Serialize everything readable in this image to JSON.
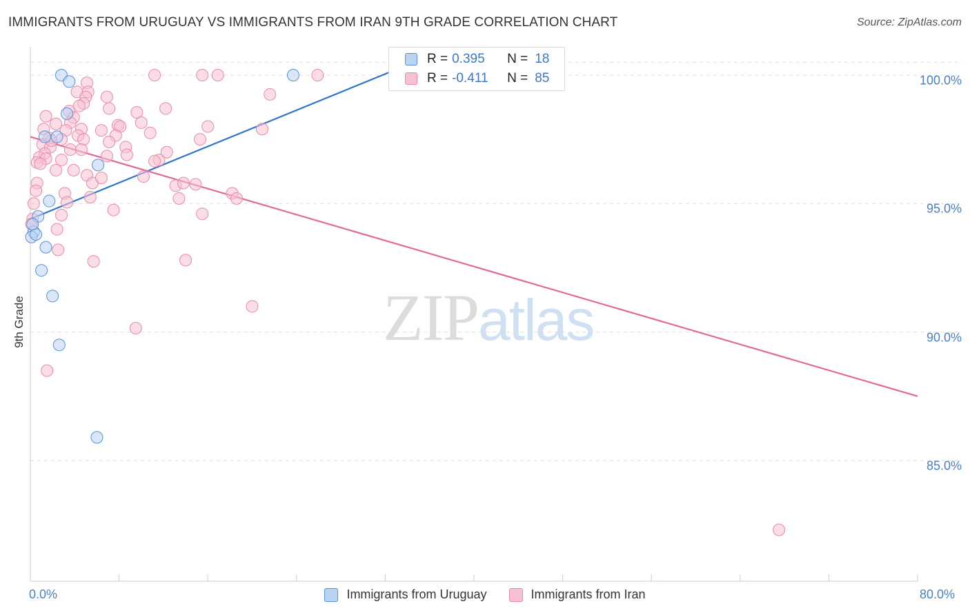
{
  "title": "IMMIGRANTS FROM URUGUAY VS IMMIGRANTS FROM IRAN 9TH GRADE CORRELATION CHART",
  "source": "Source: ZipAtlas.com",
  "watermark": {
    "zip": "ZIP",
    "atlas": "atlas"
  },
  "colors": {
    "uruguay_fill": "#b9d3f3",
    "uruguay_stroke": "#5b8fd6",
    "uruguay_line": "#2f74cc",
    "iran_fill": "#f7c1d1",
    "iran_stroke": "#e98aa8",
    "iran_line": "#e0689a",
    "grid": "#dddddd",
    "tick_text": "#4a7fc1"
  },
  "legend": {
    "uruguay": {
      "r_label": "R =",
      "r_value": "0.395",
      "n_label": "N =",
      "n_value": "18"
    },
    "iran": {
      "r_label": "R =",
      "r_value": "-0.411",
      "n_label": "N =",
      "n_value": "85"
    }
  },
  "chart_data": {
    "type": "scatter",
    "title": "IMMIGRANTS FROM URUGUAY VS IMMIGRANTS FROM IRAN 9TH GRADE CORRELATION CHART",
    "xlabel": "",
    "ylabel": "9th Grade",
    "xlim": [
      0,
      80
    ],
    "ylim": [
      80.3,
      101.1
    ],
    "x_tick_labels": [
      "0.0%",
      "80.0%"
    ],
    "y_ticks": [
      85,
      90,
      95,
      100
    ],
    "y_tick_labels": [
      "85.0%",
      "90.0%",
      "95.0%",
      "100.0%"
    ],
    "grid": "horizontal dashed",
    "legend_position": "bottom",
    "series": [
      {
        "name": "Immigrants from Uruguay",
        "color": "#5b8fd6",
        "trend": {
          "x": [
            0.0,
            34.0
          ],
          "y": [
            94.4,
            100.4
          ]
        },
        "points": [
          [
            2.8,
            100.0
          ],
          [
            23.7,
            100.0
          ],
          [
            3.5,
            99.75
          ],
          [
            3.3,
            98.5
          ],
          [
            1.3,
            97.6
          ],
          [
            2.4,
            97.6
          ],
          [
            6.1,
            96.5
          ],
          [
            1.7,
            95.1
          ],
          [
            0.7,
            94.5
          ],
          [
            0.3,
            93.9
          ],
          [
            0.1,
            93.7
          ],
          [
            1.4,
            93.3
          ],
          [
            1.0,
            92.4
          ],
          [
            2.0,
            91.4
          ],
          [
            2.6,
            89.5
          ],
          [
            6.0,
            85.9
          ],
          [
            0.5,
            93.8
          ],
          [
            0.2,
            94.2
          ]
        ]
      },
      {
        "name": "Immigrants from Iran",
        "color": "#e98aa8",
        "trend": {
          "x": [
            0.0,
            80.0
          ],
          "y": [
            97.6,
            87.5
          ]
        },
        "points": [
          [
            11.2,
            100.0
          ],
          [
            15.5,
            100.0
          ],
          [
            16.9,
            100.0
          ],
          [
            25.9,
            100.0
          ],
          [
            5.1,
            99.7
          ],
          [
            4.2,
            99.35
          ],
          [
            5.2,
            99.35
          ],
          [
            21.6,
            99.25
          ],
          [
            5.0,
            99.15
          ],
          [
            6.9,
            99.15
          ],
          [
            4.8,
            98.9
          ],
          [
            4.4,
            98.8
          ],
          [
            7.1,
            98.7
          ],
          [
            12.2,
            98.7
          ],
          [
            3.5,
            98.6
          ],
          [
            9.6,
            98.55
          ],
          [
            1.4,
            98.4
          ],
          [
            3.9,
            98.35
          ],
          [
            10.0,
            98.15
          ],
          [
            3.6,
            98.15
          ],
          [
            2.3,
            98.1
          ],
          [
            7.9,
            98.05
          ],
          [
            8.1,
            98.0
          ],
          [
            1.2,
            97.9
          ],
          [
            4.6,
            97.9
          ],
          [
            3.2,
            97.85
          ],
          [
            20.9,
            97.9
          ],
          [
            6.4,
            97.85
          ],
          [
            10.8,
            97.75
          ],
          [
            4.3,
            97.65
          ],
          [
            7.7,
            97.65
          ],
          [
            1.7,
            97.55
          ],
          [
            2.8,
            97.5
          ],
          [
            4.8,
            97.5
          ],
          [
            15.3,
            97.5
          ],
          [
            7.1,
            97.4
          ],
          [
            1.1,
            97.3
          ],
          [
            8.6,
            97.2
          ],
          [
            1.8,
            97.2
          ],
          [
            3.6,
            97.1
          ],
          [
            4.6,
            97.1
          ],
          [
            1.3,
            96.95
          ],
          [
            6.9,
            96.85
          ],
          [
            0.8,
            96.8
          ],
          [
            1.4,
            96.75
          ],
          [
            2.8,
            96.7
          ],
          [
            11.6,
            96.7
          ],
          [
            0.6,
            96.6
          ],
          [
            0.9,
            96.55
          ],
          [
            11.2,
            96.65
          ],
          [
            3.9,
            96.3
          ],
          [
            2.3,
            96.3
          ],
          [
            5.1,
            96.1
          ],
          [
            10.2,
            96.05
          ],
          [
            5.6,
            95.8
          ],
          [
            0.6,
            95.8
          ],
          [
            13.1,
            95.7
          ],
          [
            13.8,
            95.8
          ],
          [
            14.9,
            95.75
          ],
          [
            0.5,
            95.5
          ],
          [
            18.2,
            95.4
          ],
          [
            3.1,
            95.4
          ],
          [
            5.4,
            95.25
          ],
          [
            13.4,
            95.2
          ],
          [
            18.6,
            95.2
          ],
          [
            3.3,
            95.05
          ],
          [
            0.3,
            95.0
          ],
          [
            7.5,
            94.75
          ],
          [
            15.5,
            94.6
          ],
          [
            2.8,
            94.55
          ],
          [
            0.2,
            94.4
          ],
          [
            2.4,
            94.0
          ],
          [
            2.5,
            93.2
          ],
          [
            5.7,
            92.75
          ],
          [
            14.0,
            92.8
          ],
          [
            20.0,
            91.0
          ],
          [
            9.5,
            90.15
          ],
          [
            1.5,
            88.5
          ],
          [
            67.5,
            82.3
          ],
          [
            0.1,
            94.2
          ],
          [
            1.9,
            97.45
          ],
          [
            6.4,
            96.0
          ],
          [
            8.7,
            96.9
          ],
          [
            12.3,
            97.0
          ],
          [
            16.0,
            98.0
          ]
        ]
      }
    ]
  },
  "bottom_legend": [
    {
      "label": "Immigrants from Uruguay"
    },
    {
      "label": "Immigrants from Iran"
    }
  ]
}
